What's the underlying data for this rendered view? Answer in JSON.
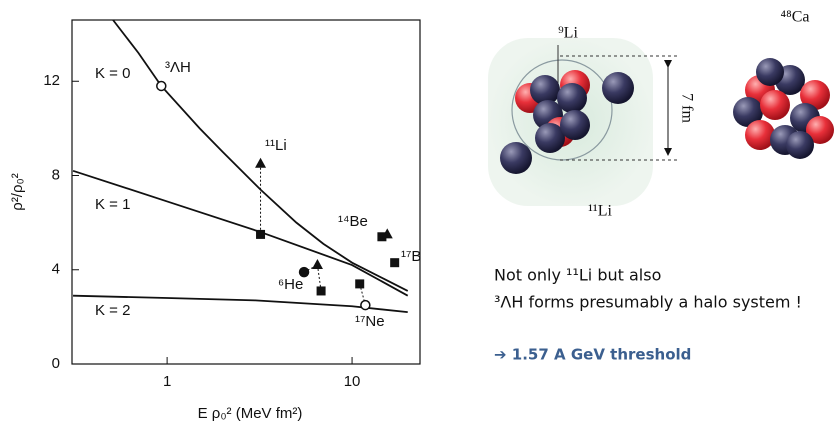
{
  "chart_data": {
    "type": "line",
    "x_label": "E ρ₀² (MeV fm²)",
    "y_label": "ρ²/ρ₀²",
    "xscale": "log",
    "xlim": [
      0.306,
      23.3
    ],
    "ylim": [
      0,
      14.6
    ],
    "xticks": [
      1,
      10
    ],
    "yticks": [
      0,
      4,
      8,
      12
    ],
    "series": [
      {
        "color": "#111111",
        "x": [
          0.51,
          0.7,
          0.93,
          1.5,
          2,
          3.2,
          5,
          7,
          10,
          15,
          20
        ],
        "values": [
          14.6,
          13.2,
          11.8,
          10,
          9,
          7.4,
          6,
          5.1,
          4.3,
          3.6,
          3.1
        ]
      },
      {
        "color": "#111111",
        "x": [
          0.31,
          1,
          3.2,
          10,
          20
        ],
        "values": [
          8.2,
          6.9,
          5.6,
          4.2,
          2.9
        ]
      },
      {
        "color": "#111111",
        "x": [
          0.31,
          1,
          3,
          10,
          20
        ],
        "values": [
          2.9,
          2.8,
          2.7,
          2.45,
          2.2
        ]
      }
    ],
    "points": [
      {
        "marker": "open-circle",
        "x": 0.93,
        "y": 11.8
      },
      {
        "marker": "triangle",
        "x": 3.2,
        "y": 8.5
      },
      {
        "marker": "square",
        "x": 3.2,
        "y": 5.5
      },
      {
        "marker": "circle",
        "x": 5.5,
        "y": 3.9
      },
      {
        "marker": "triangle",
        "x": 6.5,
        "y": 4.2
      },
      {
        "marker": "square",
        "x": 6.8,
        "y": 3.1
      },
      {
        "marker": "square",
        "x": 11,
        "y": 3.4
      },
      {
        "marker": "open-circle",
        "x": 11.8,
        "y": 2.5
      },
      {
        "marker": "square",
        "x": 14.5,
        "y": 5.4
      },
      {
        "marker": "triangle",
        "x": 15.5,
        "y": 5.5
      },
      {
        "marker": "square",
        "x": 17,
        "y": 4.3
      }
    ],
    "annotations": [
      "K = 0",
      "K = 1",
      "K = 2",
      "³ΛH",
      "¹¹Li",
      "⁶He",
      "¹⁴Be",
      "¹⁷B",
      "¹⁷Ne"
    ]
  },
  "diagram": {
    "labels": [
      "⁹Li",
      "⁴⁸Ca",
      "¹¹Li",
      "7 fm"
    ]
  },
  "notes": {
    "line1": "Not only ¹¹Li but also",
    "line2": "³ΛH forms presumably a halo system !",
    "highlight": "➔ 1.57 A GeV threshold"
  }
}
